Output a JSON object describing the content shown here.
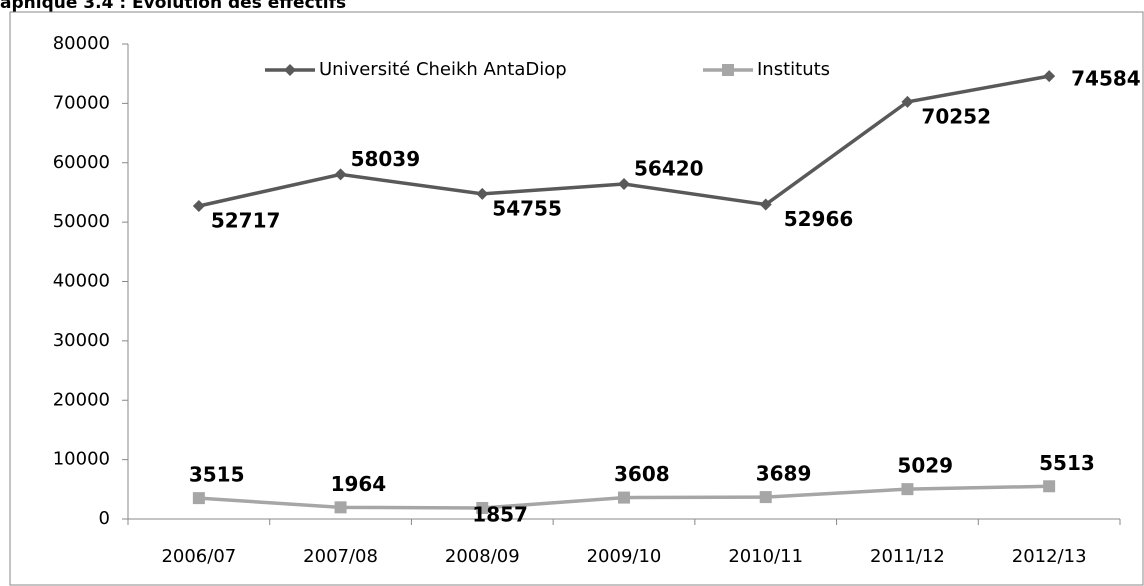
{
  "chart_data": {
    "type": "line",
    "title": "aphique 3.4 : Evolution des effectifs",
    "categories": [
      "2006/07",
      "2007/08",
      "2008/09",
      "2009/10",
      "2010/11",
      "2011/12",
      "2012/13"
    ],
    "series": [
      {
        "name": "Université Cheikh AntaDiop",
        "color": "#595959",
        "marker": "diamond",
        "values": [
          52717,
          58039,
          54755,
          56420,
          52966,
          70252,
          74584
        ]
      },
      {
        "name": "Instituts",
        "color": "#a6a6a6",
        "marker": "square",
        "values": [
          3515,
          1964,
          1857,
          3608,
          3689,
          5029,
          5513
        ]
      }
    ],
    "ylim": [
      0,
      80000
    ],
    "yticks": [
      0,
      10000,
      20000,
      30000,
      40000,
      50000,
      60000,
      70000,
      80000
    ],
    "grid": false,
    "legend": "top"
  }
}
